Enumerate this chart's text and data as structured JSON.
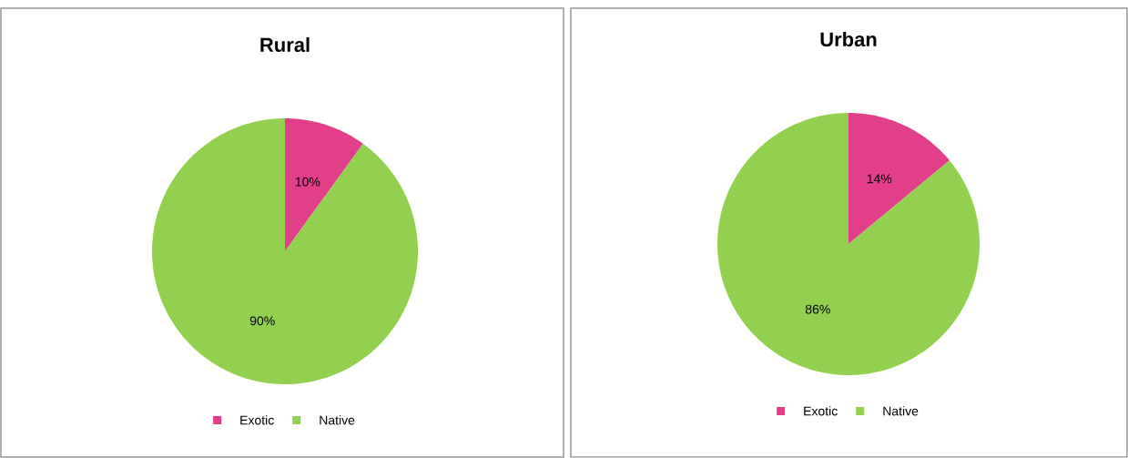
{
  "chart_data": [
    {
      "type": "pie",
      "title": "Rural",
      "categories": [
        "Exotic",
        "Native"
      ],
      "values": [
        10,
        90
      ],
      "colors": [
        "#e23e8a",
        "#92d050"
      ],
      "value_labels": [
        "10%",
        "90%"
      ],
      "legend": "bottom"
    },
    {
      "type": "pie",
      "title": "Urban",
      "categories": [
        "Exotic",
        "Native"
      ],
      "values": [
        14,
        86
      ],
      "colors": [
        "#e23e8a",
        "#92d050"
      ],
      "value_labels": [
        "14%",
        "86%"
      ],
      "legend": "bottom"
    }
  ]
}
